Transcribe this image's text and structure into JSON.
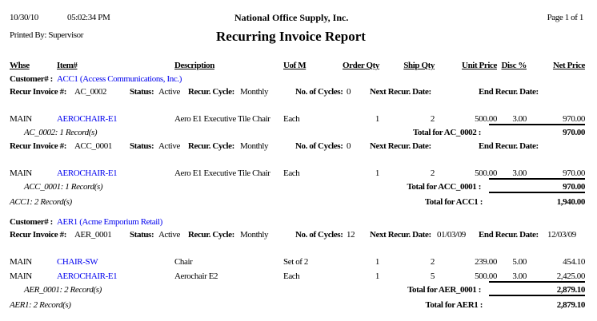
{
  "header": {
    "date": "10/30/10",
    "time": "05:02:34 PM",
    "company": "National Office Supply, Inc.",
    "page": "Page 1 of 1",
    "printed_by": "Printed By: Supervisor",
    "title": "Recurring Invoice Report"
  },
  "columns": {
    "whse": "Whse",
    "item": "Item#",
    "description": "Description",
    "uom": "Uof M",
    "order_qty": "Order Qty",
    "ship_qty": "Ship Qty",
    "unit_price": "Unit Price",
    "disc": "Disc %",
    "net_price": "Net Price"
  },
  "labels": {
    "customer": "Customer# :",
    "recur_invoice": "Recur Invoice #:",
    "status": "Status:",
    "recur_cycle": "Recur. Cycle:",
    "cycles": "No. of Cycles:",
    "next_date": "Next Recur. Date:",
    "end_date": "End Recur. Date:"
  },
  "customers": [
    {
      "customer": "ACC1 (Access Communications, Inc.)",
      "invoices": [
        {
          "invoice": "AC_0002",
          "status": "Active",
          "cycle": "Monthly",
          "cycles": "0",
          "next_date": "",
          "end_date": "",
          "items": [
            {
              "whse": "MAIN",
              "item": "AEROCHAIR-E1",
              "description": "Aero E1 Executive Tile Chair",
              "uom": "Each",
              "order_qty": "1",
              "ship_qty": "2",
              "unit_price": "500.00",
              "disc": "3.00",
              "net_price": "970.00"
            }
          ],
          "records": "AC_0002: 1 Record(s)",
          "total_label": "Total for AC_0002 :",
          "total": "970.00"
        },
        {
          "invoice": "ACC_0001",
          "status": "Active",
          "cycle": "Monthly",
          "cycles": "0",
          "next_date": "",
          "end_date": "",
          "items": [
            {
              "whse": "MAIN",
              "item": "AEROCHAIR-E1",
              "description": "Aero E1 Executive Tile Chair",
              "uom": "Each",
              "order_qty": "1",
              "ship_qty": "2",
              "unit_price": "500.00",
              "disc": "3.00",
              "net_price": "970.00"
            }
          ],
          "records": "ACC_0001: 1 Record(s)",
          "total_label": "Total for ACC_0001 :",
          "total": "970.00"
        }
      ],
      "records": "ACC1: 2 Record(s)",
      "total_label": "Total for ACC1 :",
      "total": "1,940.00"
    },
    {
      "customer": "AER1 (Acme Emporium Retail)",
      "invoices": [
        {
          "invoice": "AER_0001",
          "status": "Active",
          "cycle": "Monthly",
          "cycles": "12",
          "next_date": "01/03/09",
          "end_date": "12/03/09",
          "items": [
            {
              "whse": "MAIN",
              "item": "CHAIR-SW",
              "description": "Chair",
              "uom": "Set of 2",
              "order_qty": "1",
              "ship_qty": "2",
              "unit_price": "239.00",
              "disc": "5.00",
              "net_price": "454.10"
            },
            {
              "whse": "MAIN",
              "item": "AEROCHAIR-E1",
              "description": "Aerochair E2",
              "uom": "Each",
              "order_qty": "1",
              "ship_qty": "5",
              "unit_price": "500.00",
              "disc": "3.00",
              "net_price": "2,425.00"
            }
          ],
          "records": "AER_0001: 2 Record(s)",
          "total_label": "Total for AER_0001 :",
          "total": "2,879.10"
        }
      ],
      "records": "AER1: 2 Record(s)",
      "total_label": "Total for AER1 :",
      "total": "2,879.10"
    }
  ],
  "colors": {
    "link": "#0000ee",
    "text": "#000000"
  }
}
